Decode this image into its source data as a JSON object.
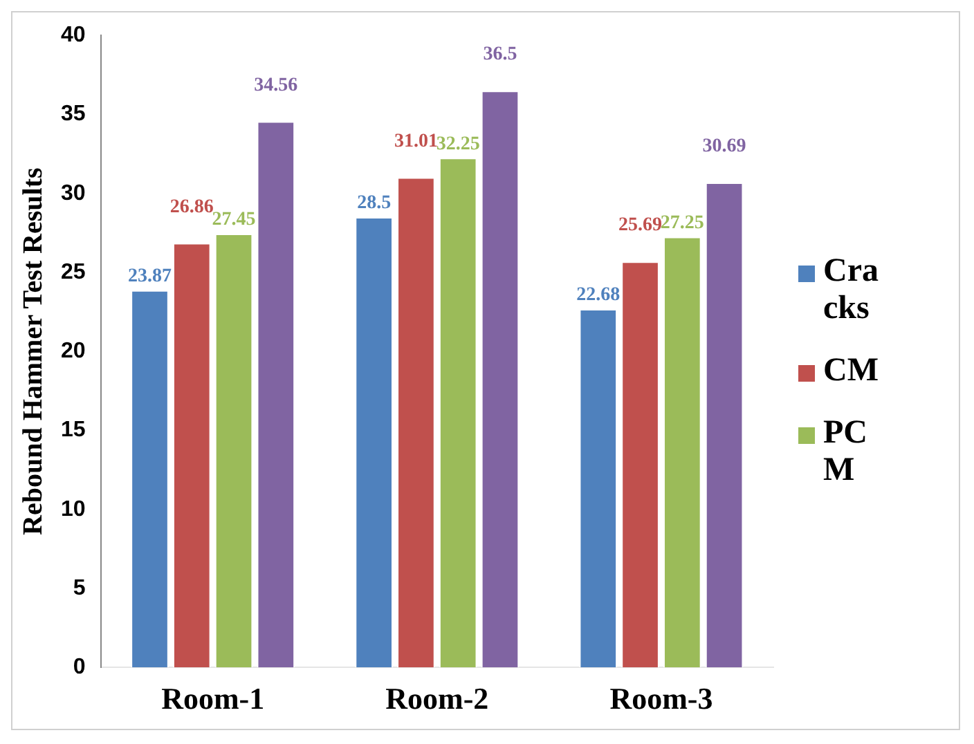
{
  "chart_data": {
    "type": "bar",
    "ylabel": "Rebound Hammer Test Results",
    "categories": [
      "Room-1",
      "Room-2",
      "Room-3"
    ],
    "series": [
      {
        "name": "Cracks",
        "color": "#4f81bd",
        "values": [
          23.87,
          28.5,
          22.68
        ]
      },
      {
        "name": "CM",
        "color": "#c0504d",
        "values": [
          26.86,
          31.01,
          25.69
        ]
      },
      {
        "name": "PCM",
        "color": "#9bbb59",
        "values": [
          27.45,
          32.25,
          27.25
        ]
      },
      {
        "color": "#8064a2",
        "values": [
          34.56,
          36.5,
          30.69
        ]
      }
    ],
    "ylim": [
      0,
      40
    ],
    "yticks": [
      0,
      5,
      10,
      15,
      20,
      25,
      30,
      35,
      40
    ],
    "grid": false,
    "legend": "right",
    "data_labels": true
  }
}
